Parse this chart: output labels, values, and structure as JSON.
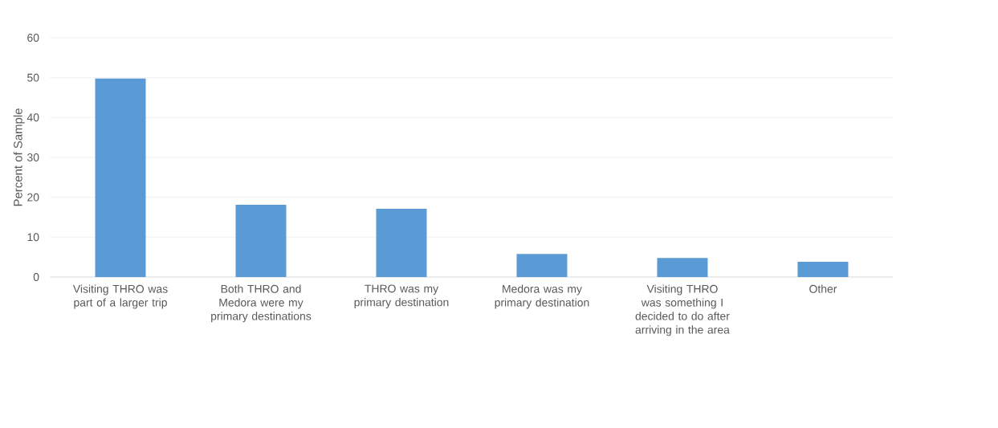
{
  "chart_data": {
    "type": "bar",
    "ylabel": "Percent of Sample",
    "categories": [
      "Visiting THRO was part of a larger trip",
      "Both THRO and Medora were my primary destinations",
      "THRO was my primary destination",
      "Medora was my primary destination",
      "Visiting THRO was something I decided to do after arriving in the area",
      "Other"
    ],
    "values": [
      49.8,
      18.1,
      17.1,
      5.8,
      4.8,
      3.8
    ],
    "color": "#5b9bd5",
    "ylim": [
      0,
      60
    ],
    "yticks": [
      0,
      10,
      20,
      30,
      40,
      50,
      60
    ],
    "grid": "y"
  }
}
